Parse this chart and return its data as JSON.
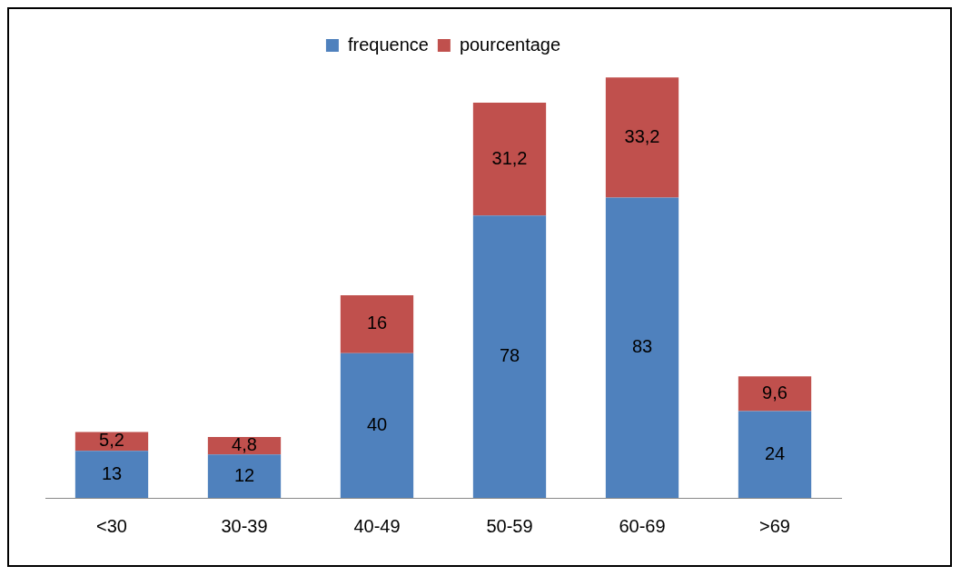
{
  "chart_data": {
    "type": "bar",
    "stacked": true,
    "legend": "top",
    "grid": false,
    "categories": [
      "<30",
      "30-39",
      "40-49",
      "50-59",
      "60-69",
      ">69"
    ],
    "series": [
      {
        "name": "frequence",
        "color": "#4f81bd",
        "values": [
          13,
          12,
          40,
          78,
          83,
          24
        ],
        "value_labels": [
          "13",
          "12",
          "40",
          "78",
          "83",
          "24"
        ]
      },
      {
        "name": "pourcentage",
        "color": "#c0504d",
        "values": [
          5.2,
          4.8,
          16,
          31.2,
          33.2,
          9.6
        ],
        "value_labels": [
          "5,2",
          "4,8",
          "16",
          "31,2",
          "33,2",
          "9,6"
        ]
      }
    ]
  }
}
